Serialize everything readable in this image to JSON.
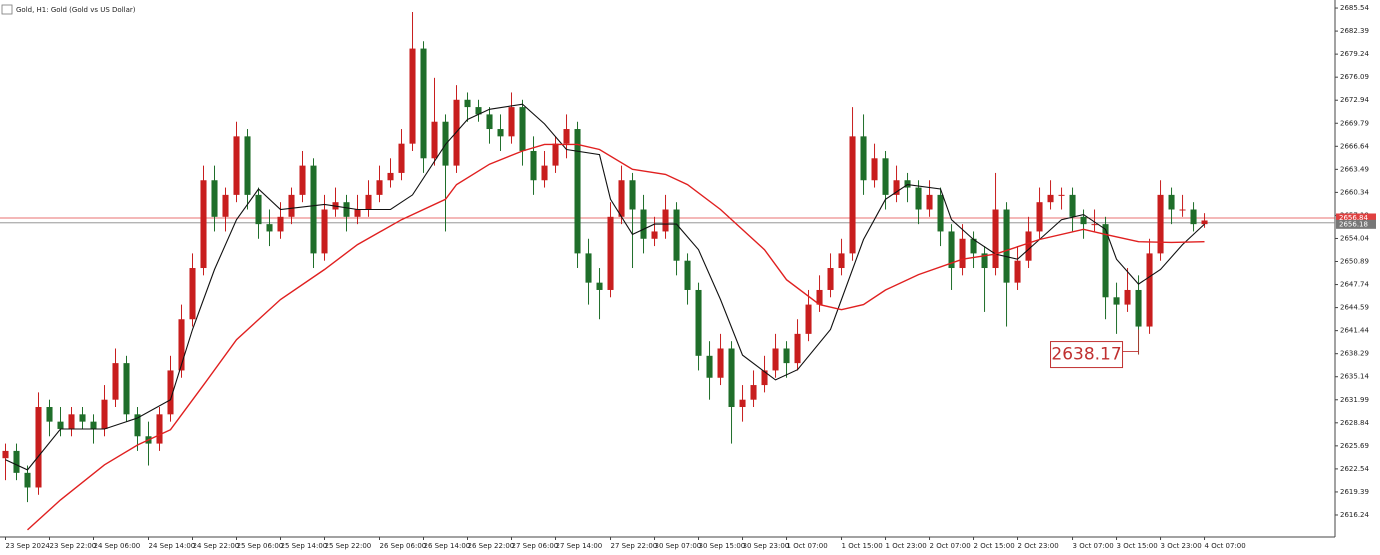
{
  "chart_data": {
    "type": "candlestick",
    "title": "Gold, H1: Gold (Gold vs US Dollar)",
    "up_color": "#c81e1e",
    "down_color": "#1f6e2a",
    "xlim": [
      -0.5,
      120.86
    ],
    "xticks": [
      {
        "value": 0,
        "label": "23 Sep 2024"
      },
      {
        "value": 4,
        "label": "23 Sep 22:00"
      },
      {
        "value": 8,
        "label": "24 Sep 06:00"
      },
      {
        "value": 13,
        "label": "24 Sep 14:00"
      },
      {
        "value": 17,
        "label": "24 Sep 22:00"
      },
      {
        "value": 21,
        "label": "25 Sep 06:00"
      },
      {
        "value": 25,
        "label": "25 Sep 14:00"
      },
      {
        "value": 29,
        "label": "25 Sep 22:00"
      },
      {
        "value": 34,
        "label": "26 Sep 06:00"
      },
      {
        "value": 38,
        "label": "26 Sep 14:00"
      },
      {
        "value": 42,
        "label": "26 Sep 22:00"
      },
      {
        "value": 46,
        "label": "27 Sep 06:00"
      },
      {
        "value": 50,
        "label": "27 Sep 14:00"
      },
      {
        "value": 55,
        "label": "27 Sep 22:00"
      },
      {
        "value": 59,
        "label": "30 Sep 07:00"
      },
      {
        "value": 63,
        "label": "30 Sep 15:00"
      },
      {
        "value": 67,
        "label": "30 Sep 23:00"
      },
      {
        "value": 71,
        "label": "1 Oct 07:00"
      },
      {
        "value": 76,
        "label": "1 Oct 15:00"
      },
      {
        "value": 80,
        "label": "1 Oct 23:00"
      },
      {
        "value": 84,
        "label": "2 Oct 07:00"
      },
      {
        "value": 88,
        "label": "2 Oct 15:00"
      },
      {
        "value": 92,
        "label": "2 Oct 23:00"
      },
      {
        "value": 97,
        "label": "3 Oct 07:00"
      },
      {
        "value": 101,
        "label": "3 Oct 15:00"
      },
      {
        "value": 105,
        "label": "3 Oct 23:00"
      },
      {
        "value": 109,
        "label": "4 Oct 07:00"
      }
    ],
    "ylim": [
      2613.23,
      2686.64
    ],
    "yticks": [
      2685.54,
      2682.39,
      2679.24,
      2676.09,
      2672.94,
      2669.79,
      2666.64,
      2663.49,
      2660.34,
      2657.19,
      2654.04,
      2650.89,
      2647.74,
      2644.59,
      2641.44,
      2638.29,
      2635.14,
      2631.99,
      2628.84,
      2625.69,
      2622.54,
      2619.39,
      2616.24
    ],
    "ohlc": [
      [
        2624,
        2626,
        2621,
        2625
      ],
      [
        2625,
        2626,
        2621,
        2622
      ],
      [
        2622,
        2623,
        2618,
        2620
      ],
      [
        2620,
        2633,
        2619,
        2631
      ],
      [
        2631,
        2632,
        2627,
        2629
      ],
      [
        2629,
        2631,
        2627,
        2628
      ],
      [
        2628,
        2631,
        2627,
        2630
      ],
      [
        2630,
        2631,
        2628,
        2629
      ],
      [
        2629,
        2630,
        2626,
        2628
      ],
      [
        2628,
        2634,
        2627,
        2632
      ],
      [
        2632,
        2639,
        2631,
        2637
      ],
      [
        2637,
        2638,
        2629,
        2630
      ],
      [
        2630,
        2631,
        2625,
        2627
      ],
      [
        2627,
        2629,
        2623,
        2626
      ],
      [
        2626,
        2631,
        2625,
        2630
      ],
      [
        2630,
        2638,
        2629,
        2636
      ],
      [
        2636,
        2645,
        2635,
        2643
      ],
      [
        2643,
        2652,
        2642,
        2650
      ],
      [
        2650,
        2664,
        2649,
        2662
      ],
      [
        2662,
        2664,
        2655,
        2657
      ],
      [
        2657,
        2661,
        2655,
        2660
      ],
      [
        2660,
        2670,
        2659,
        2668
      ],
      [
        2668,
        2669,
        2658,
        2660
      ],
      [
        2660,
        2661,
        2654,
        2656
      ],
      [
        2656,
        2658,
        2653,
        2655
      ],
      [
        2655,
        2659,
        2654,
        2657
      ],
      [
        2657,
        2661,
        2656,
        2660
      ],
      [
        2660,
        2666,
        2659,
        2664
      ],
      [
        2664,
        2665,
        2650,
        2652
      ],
      [
        2652,
        2660,
        2651,
        2658
      ],
      [
        2658,
        2661,
        2657,
        2659
      ],
      [
        2659,
        2660,
        2655,
        2657
      ],
      [
        2657,
        2660,
        2656,
        2658
      ],
      [
        2658,
        2662,
        2657,
        2660
      ],
      [
        2660,
        2664,
        2659,
        2662
      ],
      [
        2662,
        2665,
        2661,
        2663
      ],
      [
        2663,
        2669,
        2662,
        2667
      ],
      [
        2667,
        2685,
        2666,
        2680
      ],
      [
        2680,
        2681,
        2663,
        2665
      ],
      [
        2665,
        2676,
        2664,
        2670
      ],
      [
        2670,
        2671,
        2655,
        2664
      ],
      [
        2664,
        2675,
        2663,
        2673
      ],
      [
        2673,
        2674,
        2670,
        2672
      ],
      [
        2672,
        2673,
        2670,
        2671
      ],
      [
        2671,
        2672,
        2667,
        2669
      ],
      [
        2669,
        2671,
        2666,
        2668
      ],
      [
        2668,
        2674,
        2667,
        2672
      ],
      [
        2672,
        2673,
        2664,
        2666
      ],
      [
        2666,
        2668,
        2660,
        2662
      ],
      [
        2662,
        2666,
        2661,
        2664
      ],
      [
        2664,
        2668,
        2663,
        2667
      ],
      [
        2667,
        2671,
        2665,
        2669
      ],
      [
        2669,
        2670,
        2650,
        2652
      ],
      [
        2652,
        2654,
        2645,
        2648
      ],
      [
        2648,
        2650,
        2643,
        2647
      ],
      [
        2647,
        2659,
        2646,
        2657
      ],
      [
        2657,
        2664,
        2656,
        2662
      ],
      [
        2662,
        2663,
        2650,
        2658
      ],
      [
        2658,
        2660,
        2652,
        2654
      ],
      [
        2654,
        2657,
        2653,
        2655
      ],
      [
        2655,
        2660,
        2654,
        2658
      ],
      [
        2658,
        2659,
        2649,
        2651
      ],
      [
        2651,
        2652,
        2645,
        2647
      ],
      [
        2647,
        2648,
        2636,
        2638
      ],
      [
        2638,
        2640,
        2632,
        2635
      ],
      [
        2635,
        2641,
        2634,
        2639
      ],
      [
        2639,
        2640,
        2626,
        2631
      ],
      [
        2631,
        2634,
        2629,
        2632
      ],
      [
        2632,
        2636,
        2631,
        2634
      ],
      [
        2634,
        2638,
        2633,
        2636
      ],
      [
        2636,
        2641,
        2635,
        2639
      ],
      [
        2639,
        2640,
        2635,
        2637
      ],
      [
        2637,
        2643,
        2636,
        2641
      ],
      [
        2641,
        2647,
        2640,
        2645
      ],
      [
        2645,
        2649,
        2644,
        2647
      ],
      [
        2647,
        2652,
        2646,
        2650
      ],
      [
        2650,
        2654,
        2649,
        2652
      ],
      [
        2652,
        2672,
        2651,
        2668
      ],
      [
        2668,
        2671,
        2660,
        2662
      ],
      [
        2662,
        2667,
        2661,
        2665
      ],
      [
        2665,
        2666,
        2658,
        2660
      ],
      [
        2660,
        2664,
        2659,
        2662
      ],
      [
        2662,
        2663,
        2659,
        2661
      ],
      [
        2661,
        2662,
        2656,
        2658
      ],
      [
        2658,
        2662,
        2657,
        2660
      ],
      [
        2660,
        2661,
        2653,
        2655
      ],
      [
        2655,
        2656,
        2647,
        2650
      ],
      [
        2650,
        2656,
        2649,
        2654
      ],
      [
        2654,
        2655,
        2650,
        2652
      ],
      [
        2652,
        2653,
        2644,
        2650
      ],
      [
        2650,
        2663,
        2649,
        2658
      ],
      [
        2658,
        2659,
        2642,
        2648
      ],
      [
        2648,
        2653,
        2647,
        2651
      ],
      [
        2651,
        2657,
        2650,
        2655
      ],
      [
        2655,
        2661,
        2654,
        2659
      ],
      [
        2659,
        2662,
        2658,
        2660
      ],
      [
        2660,
        2661,
        2658,
        2660
      ],
      [
        2660,
        2661,
        2655,
        2657
      ],
      [
        2657,
        2658,
        2654,
        2656
      ],
      [
        2656,
        2658,
        2655,
        2656
      ],
      [
        2656,
        2657,
        2643,
        2646
      ],
      [
        2646,
        2648,
        2641,
        2645
      ],
      [
        2645,
        2650,
        2644,
        2647
      ],
      [
        2647,
        2649,
        2638.17,
        2642
      ],
      [
        2642,
        2654,
        2641,
        2652
      ],
      [
        2652,
        2662,
        2651,
        2660
      ],
      [
        2660,
        2661,
        2656,
        2658
      ],
      [
        2658,
        2660,
        2657,
        2658
      ],
      [
        2658,
        2659,
        2655,
        2656
      ],
      [
        2656,
        2657.5,
        2655.5,
        2656.5
      ]
    ],
    "moving_averages": [
      {
        "color": "#111111",
        "x": [
          0,
          2,
          5,
          9,
          12,
          15,
          17,
          19,
          21,
          23,
          25,
          29,
          32,
          35,
          37,
          40,
          42,
          44,
          47,
          49,
          51,
          54,
          55,
          57,
          59,
          61,
          63,
          65,
          67,
          70,
          72,
          75,
          76,
          78,
          80,
          82,
          85,
          86,
          88,
          90,
          92,
          94,
          96,
          98,
          100,
          101,
          103,
          105,
          107,
          109
        ],
        "values": [
          2623.8,
          2622.4,
          2628,
          2628,
          2629.5,
          2632,
          2641.6,
          2649.8,
          2656.6,
          2660.8,
          2658,
          2658.7,
          2658,
          2658,
          2660,
          2666.9,
          2670.3,
          2671.7,
          2672.4,
          2669.7,
          2666.2,
          2665.5,
          2659.4,
          2654.6,
          2656,
          2656,
          2652.5,
          2645.7,
          2638.1,
          2634.7,
          2636.1,
          2641.6,
          2645.7,
          2653.9,
          2659.4,
          2661.4,
          2660.8,
          2656.6,
          2653.9,
          2651.9,
          2651.2,
          2653.9,
          2656.6,
          2657.3,
          2655.3,
          2651.2,
          2647.8,
          2649.8,
          2653.2,
          2656
        ]
      },
      {
        "color": "#e02020",
        "x": [
          2,
          5,
          9,
          12,
          15,
          18,
          21,
          25,
          29,
          32,
          36,
          40,
          41,
          44,
          47,
          49,
          52,
          54,
          57,
          60,
          62,
          65,
          69,
          71,
          74,
          76,
          78,
          80,
          83,
          87,
          90,
          94,
          98,
          100,
          103,
          106,
          109
        ],
        "values": [
          2614.2,
          2618.3,
          2623.1,
          2625.8,
          2627.9,
          2634,
          2640.2,
          2645.7,
          2649.8,
          2653.2,
          2656.6,
          2659.4,
          2661.4,
          2664.2,
          2666,
          2666.9,
          2666.9,
          2666.2,
          2663.5,
          2662.8,
          2661.4,
          2658,
          2652.5,
          2648.4,
          2645,
          2644.3,
          2645,
          2647,
          2649.1,
          2651.2,
          2651.9,
          2653.9,
          2655.3,
          2654.6,
          2653.6,
          2653.5,
          2653.6
        ]
      }
    ],
    "ask_line": 2656.84,
    "bid_line": 2656.18,
    "low_marker": 2638.17
  }
}
